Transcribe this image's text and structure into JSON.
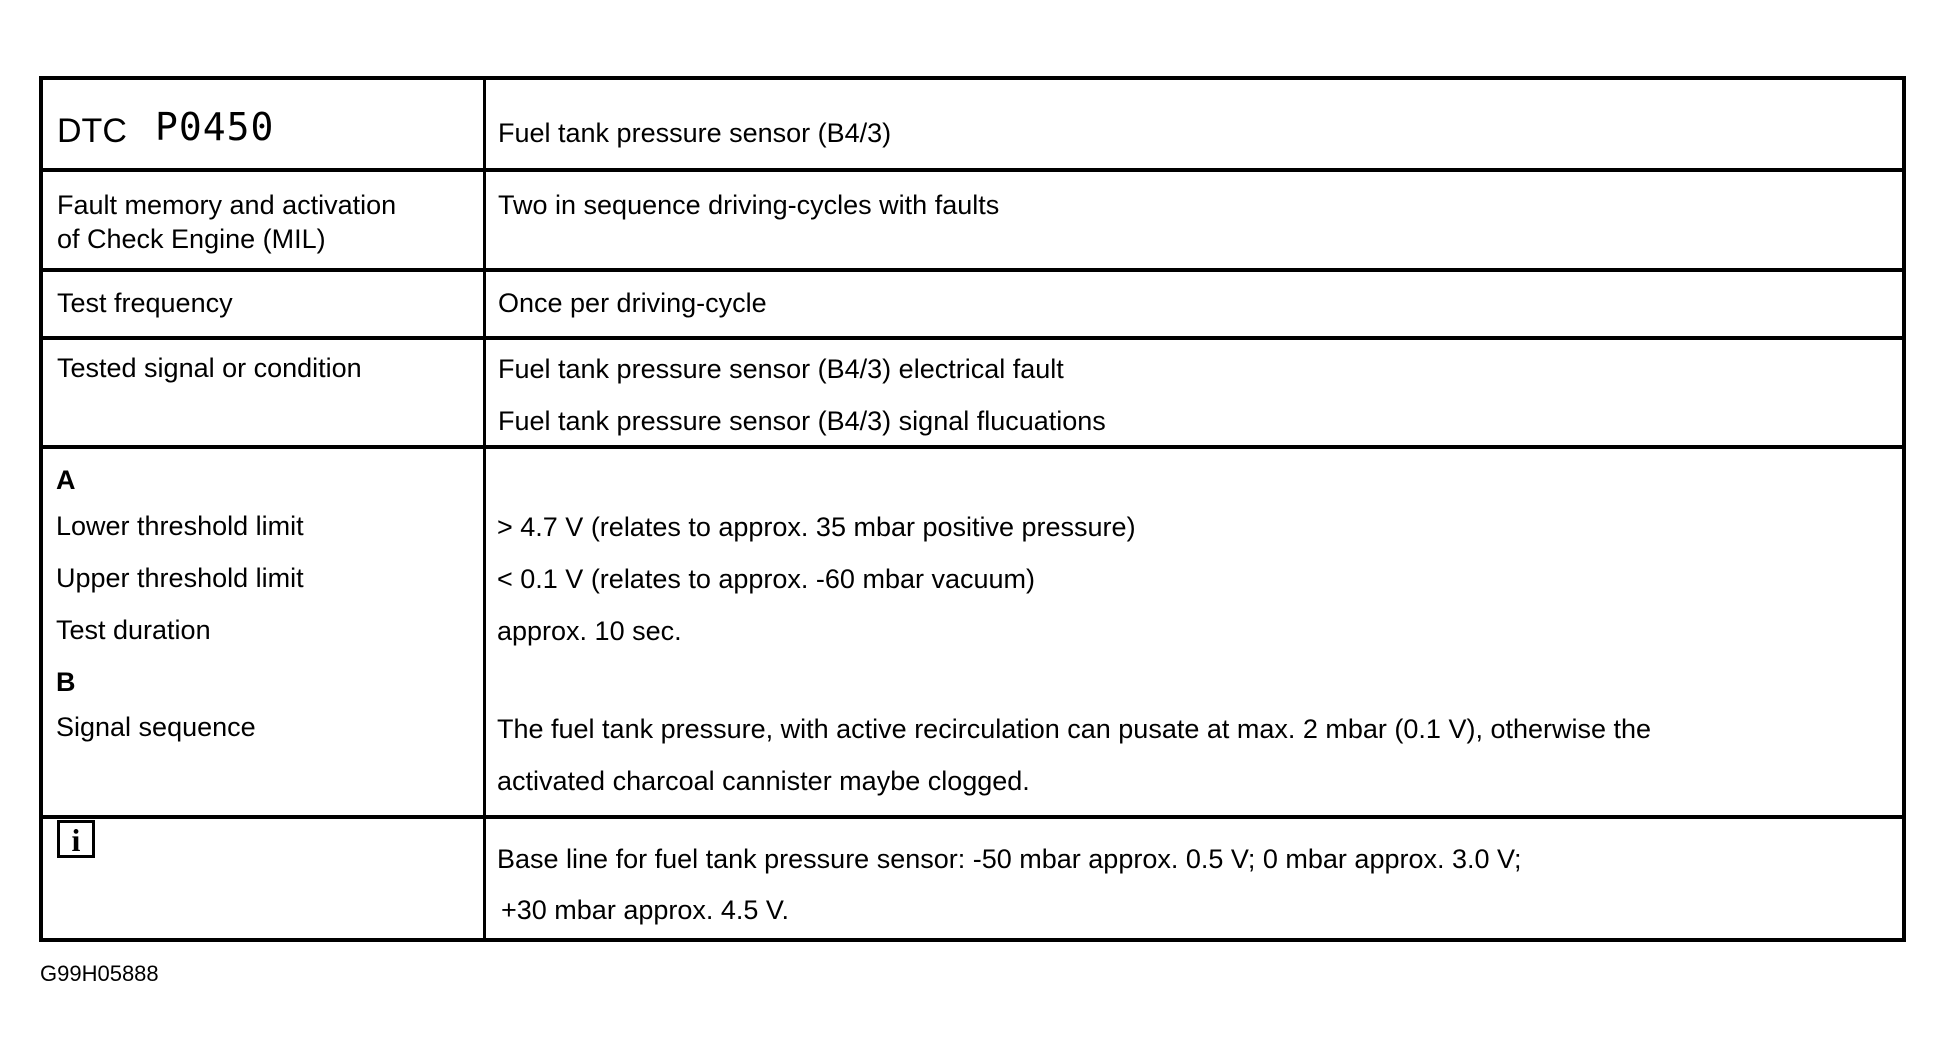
{
  "header": {
    "label": "DTC",
    "code": "P0450",
    "description": "Fuel tank pressure sensor (B4/3)"
  },
  "rows": [
    {
      "label_lines": [
        "Fault memory and activation",
        "of Check Engine (MIL)"
      ],
      "value_lines": [
        "Two in sequence driving-cycles with faults"
      ]
    },
    {
      "label_lines": [
        "Test frequency"
      ],
      "value_lines": [
        "Once per driving-cycle"
      ]
    },
    {
      "label_lines": [
        "Tested signal or condition"
      ],
      "value_lines": [
        "Fuel tank pressure sensor (B4/3) electrical fault",
        "Fuel tank pressure sensor (B4/3) signal flucuations"
      ]
    }
  ],
  "section_a": {
    "heading": "A",
    "items": [
      {
        "label": "Lower threshold limit",
        "value": "> 4.7 V (relates to approx. 35 mbar positive pressure)"
      },
      {
        "label": "Upper threshold limit",
        "value": "< 0.1 V (relates to approx. -60 mbar vacuum)"
      },
      {
        "label": "Test duration",
        "value": "approx. 10 sec."
      }
    ]
  },
  "section_b": {
    "heading": "B",
    "label": "Signal sequence",
    "value_lines": [
      "The fuel tank pressure, with active recirculation can pusate at max. 2 mbar (0.1 V), otherwise the",
      "activated charcoal cannister maybe clogged."
    ]
  },
  "info": {
    "icon": "info-icon",
    "glyph": "i",
    "value_lines": [
      "Base line for fuel tank pressure sensor: -50 mbar approx. 0.5 V; 0 mbar approx. 3.0 V;",
      "+30 mbar approx. 4.5 V."
    ]
  },
  "caption": "G99H05888"
}
